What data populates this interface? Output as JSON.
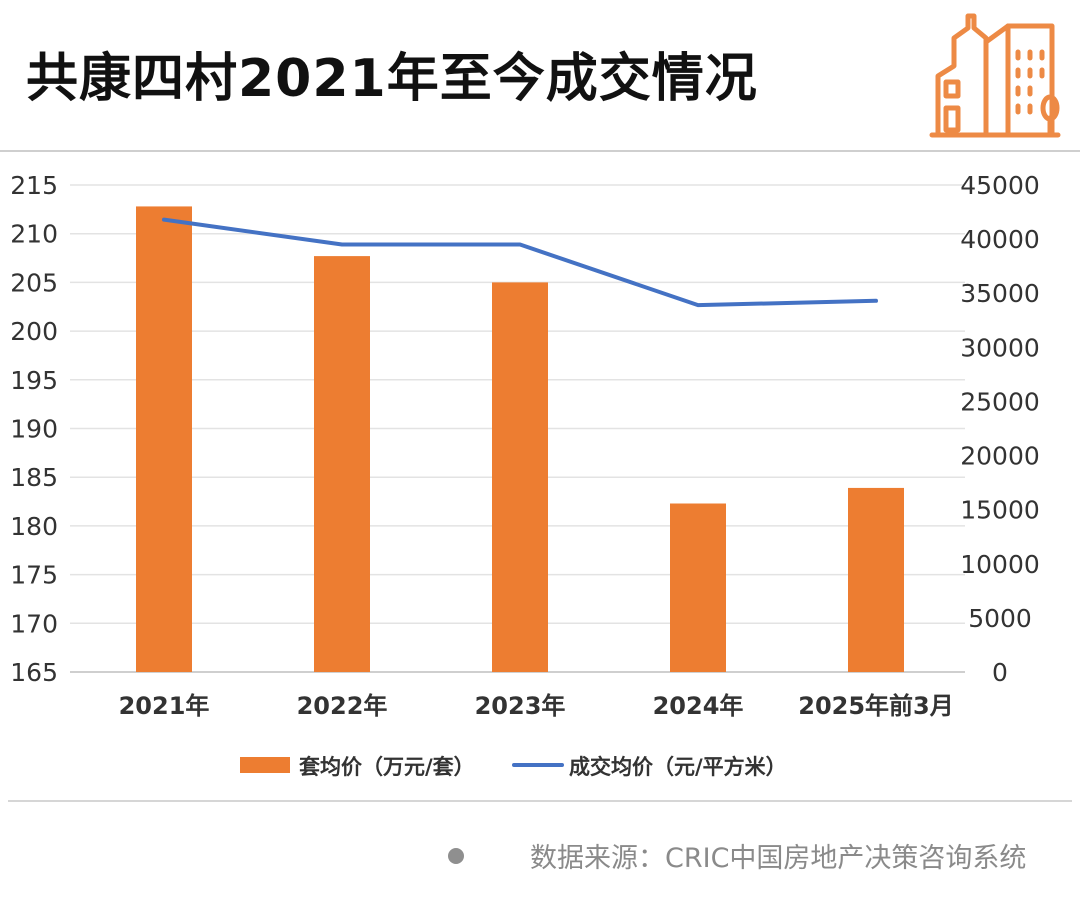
{
  "title": "共康四村2021年至今成交情况",
  "source": "数据来源：CRIC中国房地产决策咨询系统",
  "colors": {
    "bar": "#ED7D31",
    "line": "#4472C4",
    "logo": "#ED8A45"
  },
  "chart_data": {
    "type": "bar",
    "title": "",
    "categories": [
      "2021年",
      "2022年",
      "2023年",
      "2024年",
      "2025年前3月"
    ],
    "series": [
      {
        "name": "套均价（万元/套）",
        "type": "bar",
        "axis": "left",
        "values": [
          212.8,
          207.7,
          205.0,
          182.3,
          183.9
        ]
      },
      {
        "name": "成交均价（元/平方米）",
        "type": "line",
        "axis": "right",
        "values": [
          41800,
          39500,
          39500,
          33900,
          34300
        ]
      }
    ],
    "y_left": {
      "min": 165,
      "max": 215,
      "step": 5,
      "ticks": [
        "215",
        "210",
        "205",
        "200",
        "195",
        "190",
        "185",
        "180",
        "175",
        "170",
        "165"
      ]
    },
    "y_right": {
      "min": 0,
      "max": 45000,
      "step": 5000,
      "ticks": [
        "45000",
        "40000",
        "35000",
        "30000",
        "25000",
        "20000",
        "15000",
        "10000",
        "5000",
        "0"
      ]
    },
    "grid": true,
    "legend": "bottom-center"
  }
}
